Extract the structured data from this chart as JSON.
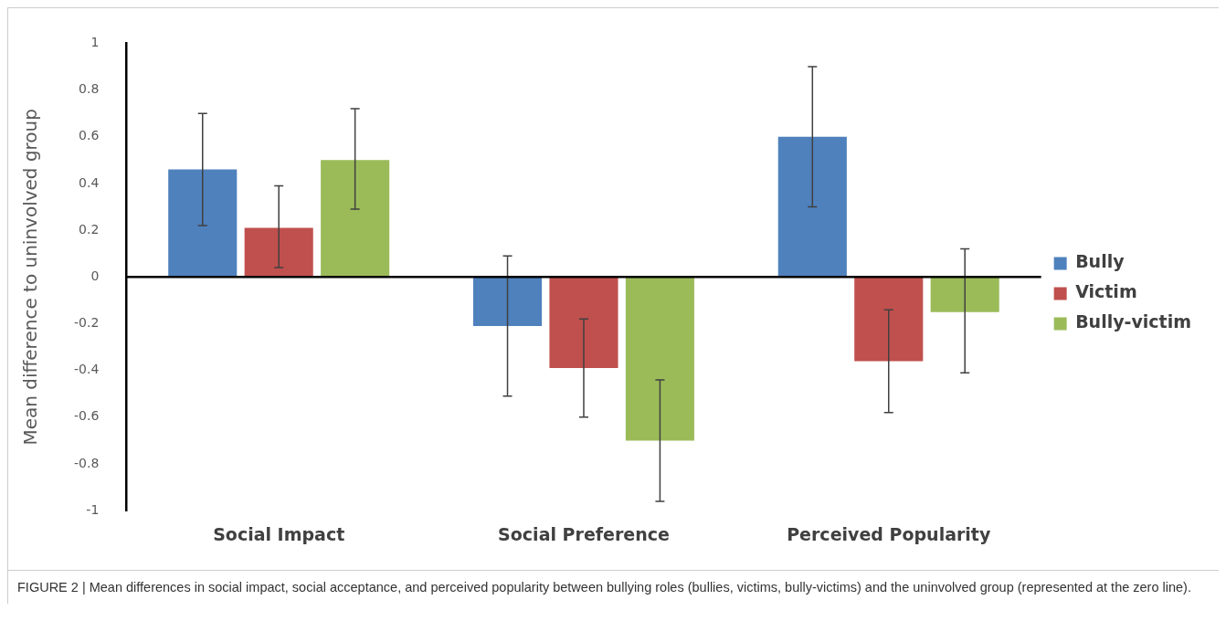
{
  "chart_data": {
    "type": "bar",
    "ylabel": "Mean difference to uninvolved group",
    "categories": [
      "Social Impact",
      "Social Preference",
      "Perceived Popularity"
    ],
    "series": [
      {
        "name": "Bully",
        "color": "#4f81bd",
        "values": [
          0.46,
          -0.21,
          0.6
        ],
        "errors": [
          [
            0.22,
            0.7
          ],
          [
            -0.51,
            0.09
          ],
          [
            0.3,
            0.9
          ]
        ]
      },
      {
        "name": "Victim",
        "color": "#c0504d",
        "values": [
          0.21,
          -0.39,
          -0.36
        ],
        "errors": [
          [
            0.04,
            0.39
          ],
          [
            -0.6,
            -0.18
          ],
          [
            -0.58,
            -0.14
          ]
        ]
      },
      {
        "name": "Bully-victim",
        "color": "#9bbb59",
        "values": [
          0.5,
          -0.7,
          -0.15
        ],
        "errors": [
          [
            0.29,
            0.72
          ],
          [
            -0.96,
            -0.44
          ],
          [
            -0.41,
            0.12
          ]
        ]
      }
    ],
    "ylim": [
      -1,
      1
    ],
    "yticks": [
      -1,
      -0.8,
      -0.6,
      -0.4,
      -0.2,
      0,
      0.2,
      0.4,
      0.6,
      0.8,
      1
    ],
    "legend": "right",
    "grid": false,
    "ref_lines": [
      {
        "axis": "y",
        "value": 0,
        "color": "#000000"
      }
    ],
    "annotations": [
      "FIGURE 2 | Mean differences in social impact, social acceptance, and perceived popularity between bullying roles (bullies, victims, bully-victims) and the uninvolved group (represented at the zero line)."
    ]
  }
}
